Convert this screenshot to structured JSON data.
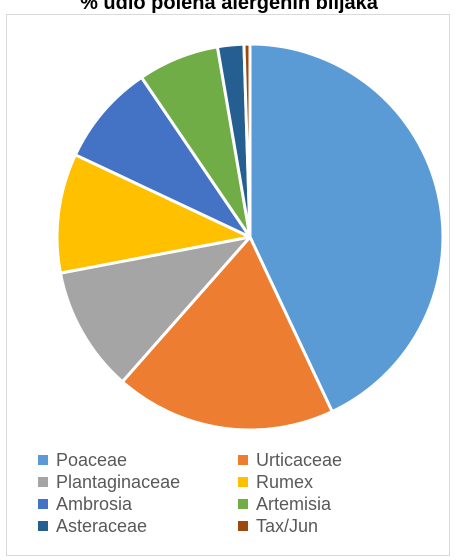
{
  "chart_data": {
    "type": "pie",
    "title": "% udio polena alergenih biljaka",
    "slices": [
      {
        "label": "Poaceae",
        "value": 43.0,
        "color": "#5b9bd5"
      },
      {
        "label": "Urticaceae",
        "value": 18.5,
        "color": "#ed7d31"
      },
      {
        "label": "Plantaginaceae",
        "value": 10.5,
        "color": "#a5a5a5"
      },
      {
        "label": "Rumex",
        "value": 10.0,
        "color": "#ffc000"
      },
      {
        "label": "Ambrosia",
        "value": 8.5,
        "color": "#4472c4"
      },
      {
        "label": "Artemisia",
        "value": 6.8,
        "color": "#70ad47"
      },
      {
        "label": "Asteraceae",
        "value": 2.2,
        "color": "#255e91"
      },
      {
        "label": "Tax/Jun",
        "value": 0.5,
        "color": "#9e480e"
      }
    ],
    "start_angle_deg": 0,
    "direction": "clockwise",
    "legend_position": "bottom"
  }
}
